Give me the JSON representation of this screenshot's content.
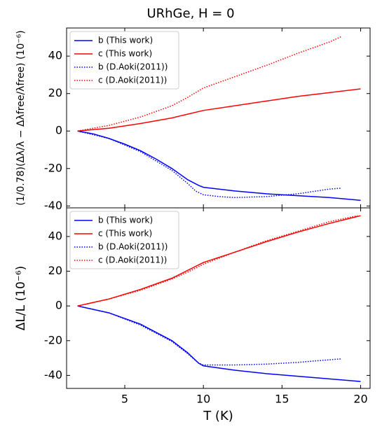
{
  "chart_data": [
    {
      "type": "line",
      "title": "URhGe, H = 0",
      "ylabel": "(1/0.78)(Δλ/λ − Δλfree/λfree)   (10⁻⁶)",
      "xlim": [
        1.3,
        20.6
      ],
      "xticks": [
        5,
        10,
        15,
        20
      ],
      "ylim": [
        -41,
        55
      ],
      "yticks": [
        -40,
        -20,
        0,
        20,
        40
      ],
      "legend": "upper left",
      "series": [
        {
          "name": "b (This work)",
          "color": "#0000ff",
          "dash": "solid",
          "x": [
            2,
            3,
            4,
            5,
            6,
            7,
            8,
            9,
            9.7,
            10,
            12,
            14,
            16,
            18,
            20
          ],
          "values": [
            0,
            -1.5,
            -4,
            -7,
            -10.5,
            -15,
            -20,
            -26,
            -29,
            -30,
            -32,
            -33.5,
            -34.5,
            -35.5,
            -37
          ]
        },
        {
          "name": "c (This work)",
          "color": "#ff0000",
          "dash": "solid",
          "x": [
            2,
            4,
            6,
            8,
            9,
            10,
            12,
            14,
            16,
            18,
            20
          ],
          "values": [
            0,
            1.5,
            4,
            7,
            9,
            11,
            13.5,
            16,
            18.5,
            20.5,
            22.5
          ]
        },
        {
          "name": "b (D.Aoki(2011))",
          "color": "#0000ff",
          "dash": "dotted",
          "x": [
            2,
            4,
            6,
            8,
            9,
            9.5,
            10,
            11,
            12,
            14,
            16,
            18,
            18.8
          ],
          "values": [
            0,
            -4,
            -11,
            -21,
            -28,
            -32,
            -34,
            -35,
            -35.5,
            -35,
            -33.5,
            -31,
            -30.5
          ]
        },
        {
          "name": "c (D.Aoki(2011))",
          "color": "#ff0000",
          "dash": "dotted",
          "x": [
            2,
            4,
            6,
            8,
            9,
            10,
            12,
            14,
            16,
            18,
            18.8
          ],
          "values": [
            0,
            3,
            7.5,
            13.5,
            18,
            23,
            29,
            35,
            41.5,
            47.5,
            50.5
          ]
        }
      ]
    },
    {
      "type": "line",
      "xlabel": "T (K)",
      "ylabel": "ΔL/L   (10⁻⁶)",
      "xlim": [
        1.3,
        20.6
      ],
      "xticks": [
        5,
        10,
        15,
        20
      ],
      "ylim": [
        -47.5,
        56.5
      ],
      "yticks": [
        -40,
        -20,
        0,
        20,
        40
      ],
      "legend": "upper left",
      "series": [
        {
          "name": "b (This work)",
          "color": "#0000ff",
          "dash": "solid",
          "x": [
            2,
            4,
            6,
            8,
            9,
            9.7,
            10,
            12,
            14,
            16,
            18,
            20
          ],
          "values": [
            0,
            -4,
            -10.5,
            -20,
            -27,
            -33,
            -34.5,
            -37,
            -39,
            -40.5,
            -42,
            -43.5
          ]
        },
        {
          "name": "c (This work)",
          "color": "#ff0000",
          "dash": "solid",
          "x": [
            2,
            4,
            6,
            8,
            9,
            10,
            12,
            14,
            16,
            18,
            20
          ],
          "values": [
            0,
            4,
            9.5,
            16,
            20.5,
            25,
            31,
            37,
            42.5,
            47.5,
            52
          ]
        },
        {
          "name": "b (D.Aoki(2011))",
          "color": "#0000ff",
          "dash": "dotted",
          "x": [
            2,
            4,
            6,
            8,
            9,
            9.7,
            10,
            12,
            14,
            16,
            18,
            18.8
          ],
          "values": [
            0,
            -4,
            -11,
            -20.5,
            -27.5,
            -33,
            -34,
            -34,
            -33.5,
            -32.5,
            -31,
            -30.5
          ]
        },
        {
          "name": "c (D.Aoki(2011))",
          "color": "#ff0000",
          "dash": "dotted",
          "x": [
            2,
            4,
            6,
            8,
            9,
            10,
            12,
            14,
            16,
            18,
            19.8
          ],
          "values": [
            0,
            4,
            9,
            15.5,
            19.5,
            24,
            31,
            37.5,
            43,
            48.5,
            52
          ]
        }
      ]
    }
  ]
}
